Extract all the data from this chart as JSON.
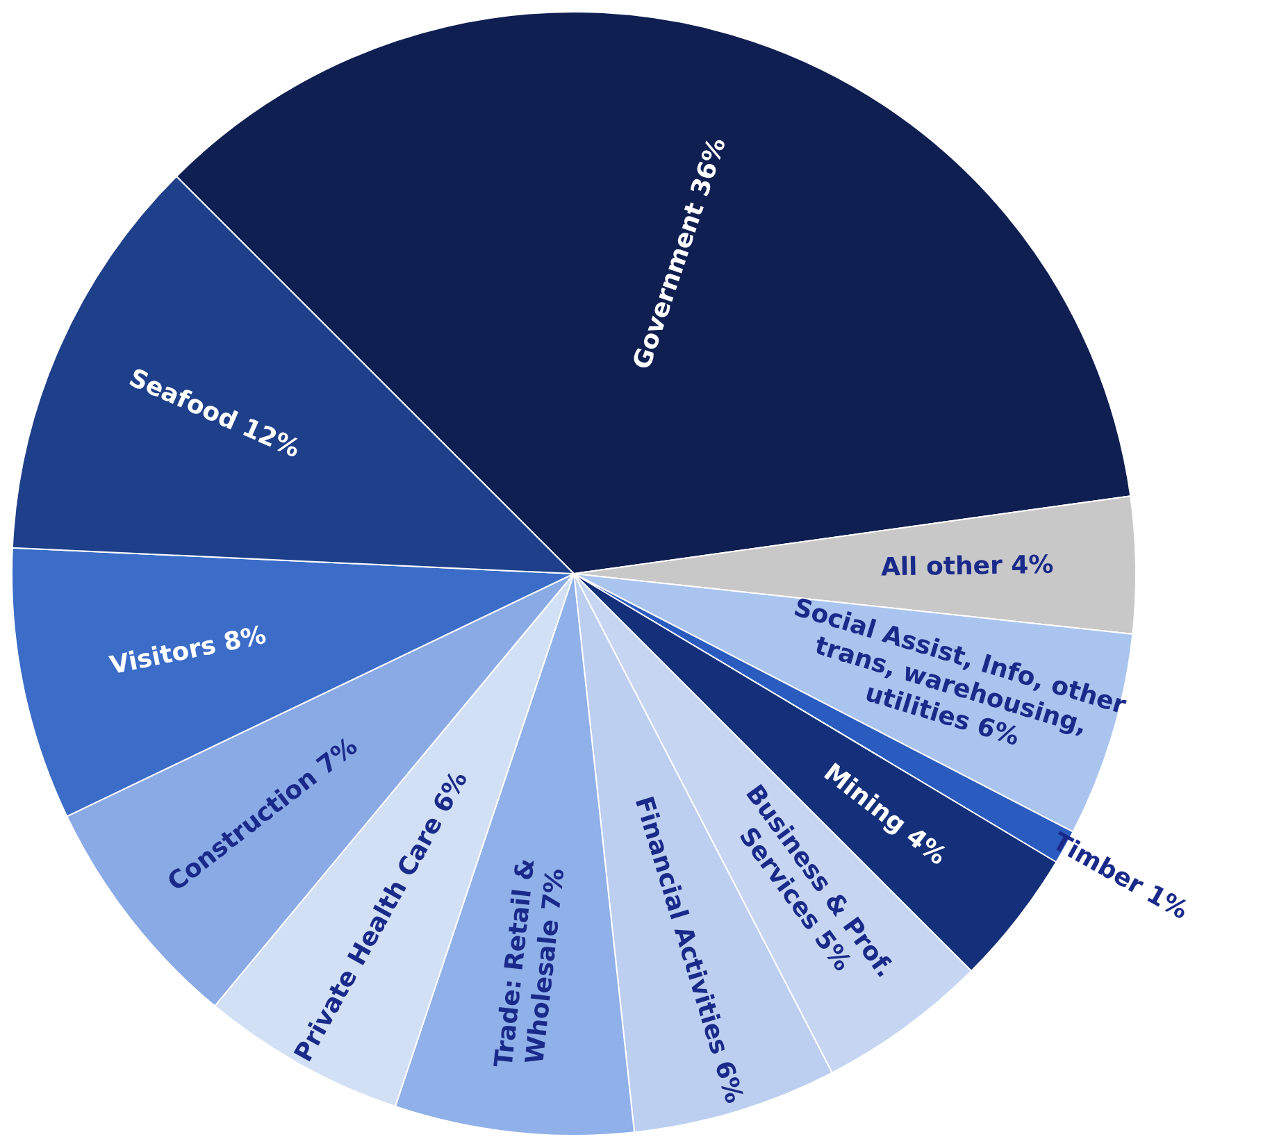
{
  "chart_data": {
    "type": "pie",
    "categories": [
      "Government",
      "All other",
      "Social Assist, Info, other trans, warehousing, utilities",
      "Timber",
      "Mining",
      "Business & Prof. Services",
      "Financial Activities",
      "Trade: Retail & Wholesale",
      "Private Health Care",
      "Construction",
      "Visitors",
      "Seafood"
    ],
    "values": [
      36,
      4,
      6,
      1,
      4,
      5,
      6,
      7,
      6,
      7,
      8,
      12
    ],
    "value_labels": [
      "36%",
      "4%",
      "6%",
      "1%",
      "4%",
      "5%",
      "6%",
      "7%",
      "6%",
      "7%",
      "8%",
      "12%"
    ],
    "colors": [
      "#0f1f52",
      "#c8c8c8",
      "#a9c4ee",
      "#2a5cc0",
      "#14307a",
      "#c6d6f2",
      "#bccff0",
      "#8fb0e8",
      "#d2e0f5",
      "#8aaae6",
      "#3a6cc8",
      "#1e3f8a"
    ],
    "legend": false
  }
}
